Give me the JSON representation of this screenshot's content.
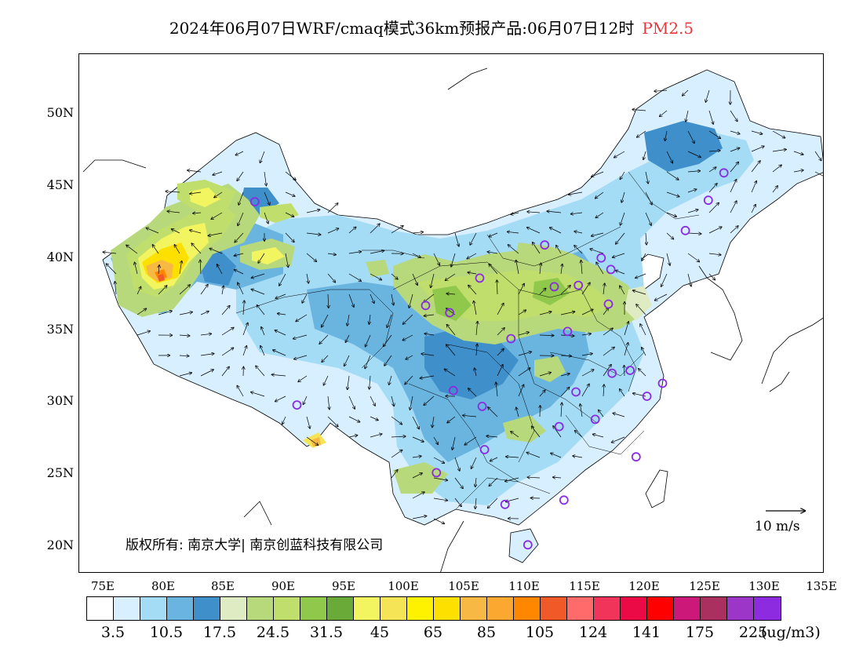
{
  "title": {
    "text": "2024年06月07日WRF/cmaq模式36km预报产品:06月07日12时",
    "pollutant": "PM2.5"
  },
  "map": {
    "lat_labels": [
      "50N",
      "45N",
      "40N",
      "35N",
      "30N",
      "25N",
      "20N"
    ],
    "lon_labels": [
      "75E",
      "80E",
      "85E",
      "90E",
      "95E",
      "100E",
      "105E",
      "110E",
      "115E",
      "120E",
      "125E",
      "130E",
      "135E"
    ],
    "copyright": "版权所有: 南京大学| 南京创蓝科技有限公司",
    "wind_reference": "10 m/s",
    "stations": [
      {
        "lon": 87.6,
        "lat": 43.8
      },
      {
        "lon": 91.1,
        "lat": 29.7
      },
      {
        "lon": 101.8,
        "lat": 36.6
      },
      {
        "lon": 103.8,
        "lat": 36.1
      },
      {
        "lon": 106.3,
        "lat": 38.5
      },
      {
        "lon": 111.7,
        "lat": 40.8
      },
      {
        "lon": 108.9,
        "lat": 34.3
      },
      {
        "lon": 112.5,
        "lat": 37.9
      },
      {
        "lon": 114.5,
        "lat": 38.0
      },
      {
        "lon": 116.4,
        "lat": 39.9
      },
      {
        "lon": 117.2,
        "lat": 39.1
      },
      {
        "lon": 117.0,
        "lat": 36.7
      },
      {
        "lon": 113.6,
        "lat": 34.8
      },
      {
        "lon": 117.3,
        "lat": 31.9
      },
      {
        "lon": 118.8,
        "lat": 32.1
      },
      {
        "lon": 121.5,
        "lat": 31.2
      },
      {
        "lon": 120.2,
        "lat": 30.3
      },
      {
        "lon": 114.3,
        "lat": 30.6
      },
      {
        "lon": 112.9,
        "lat": 28.2
      },
      {
        "lon": 115.9,
        "lat": 28.7
      },
      {
        "lon": 119.3,
        "lat": 26.1
      },
      {
        "lon": 113.3,
        "lat": 23.1
      },
      {
        "lon": 108.4,
        "lat": 22.8
      },
      {
        "lon": 110.3,
        "lat": 20.0
      },
      {
        "lon": 106.7,
        "lat": 26.6
      },
      {
        "lon": 102.7,
        "lat": 25.0
      },
      {
        "lon": 104.1,
        "lat": 30.7
      },
      {
        "lon": 106.5,
        "lat": 29.6
      },
      {
        "lon": 123.4,
        "lat": 41.8
      },
      {
        "lon": 125.3,
        "lat": 43.9
      },
      {
        "lon": 126.6,
        "lat": 45.8
      }
    ]
  },
  "colorbar": {
    "colors": [
      "#ffffff",
      "#d8efff",
      "#a4dbf5",
      "#6ab4e0",
      "#3f8fcb",
      "#dfebc3",
      "#b8d87c",
      "#c0de6c",
      "#90c84c",
      "#6aaa38",
      "#f2f560",
      "#f5e455",
      "#fff200",
      "#fee000",
      "#f8b944",
      "#fba830",
      "#ff8700",
      "#f05a28",
      "#ff6a6a",
      "#f0345a",
      "#eb0a46",
      "#ff0000",
      "#cc1878",
      "#aa3060",
      "#9b36c8",
      "#8c2be0"
    ],
    "labels": [
      "3.5",
      "10.5",
      "17.5",
      "24.5",
      "31.5",
      "45",
      "65",
      "85",
      "105",
      "124",
      "141",
      "175",
      "225"
    ],
    "unit": "(ug/m3)"
  }
}
